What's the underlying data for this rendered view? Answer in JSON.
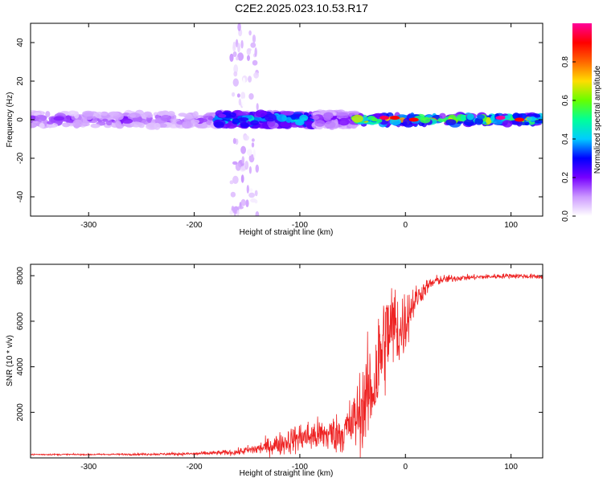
{
  "chart_data": [
    {
      "type": "heatmap",
      "title": "C2E2.2025.023.10.53.R17",
      "xlabel": "Height of straight line (km)",
      "ylabel": "Frequency (Hz)",
      "xlim": [
        -355,
        130
      ],
      "ylim": [
        -50,
        50
      ],
      "xticks": [
        -300,
        -200,
        -100,
        0,
        100
      ],
      "yticks": [
        -40,
        -20,
        0,
        20,
        40
      ],
      "colorbar": {
        "label": "Normalized spectral amplitude",
        "range": [
          0,
          1
        ],
        "ticks": [
          "0.0",
          "0.2",
          "0.4",
          "0.6",
          "0.8"
        ],
        "colors": [
          "#ffffff",
          "#cc99ff",
          "#7700ff",
          "#0000ff",
          "#00ccff",
          "#00ff99",
          "#66ff00",
          "#ffdd00",
          "#ff6600",
          "#ff0000",
          "#ff0099"
        ]
      },
      "regions": [
        {
          "x": [
            -355,
            -165
          ],
          "pattern": "broadband noise",
          "level": 0.15
        },
        {
          "x": [
            -165,
            -140
          ],
          "pattern": "sparse noise",
          "level": 0.05
        },
        {
          "x": [
            -178,
            -82
          ],
          "pattern": "band near 0 Hz",
          "level": 0.4
        },
        {
          "x": [
            -85,
            -47
          ],
          "pattern": "broadband noise",
          "level": 0.2
        },
        {
          "x": [
            -47,
            130
          ],
          "pattern": "narrow band near 0 Hz",
          "level": 0.6
        }
      ],
      "hotspots": [
        {
          "x": -20,
          "y": 1,
          "level": 0.95
        },
        {
          "x": -10,
          "y": 1,
          "level": 0.9
        },
        {
          "x": 8,
          "y": 0,
          "level": 0.9
        },
        {
          "x": 90,
          "y": 1,
          "level": 1.0
        },
        {
          "x": 108,
          "y": 0,
          "level": 0.9
        }
      ]
    },
    {
      "type": "line",
      "xlabel": "Height of straight line (km)",
      "ylabel": "SNR (10 * v/v)",
      "xlim": [
        -355,
        130
      ],
      "ylim": [
        0,
        8500
      ],
      "xticks": [
        -300,
        -200,
        -100,
        0,
        100
      ],
      "yticks": [
        2000,
        4000,
        6000,
        8000
      ],
      "color": "#ee2222",
      "series": [
        {
          "x": [
            -355,
            -300,
            -250,
            -200,
            -160,
            -140,
            -120,
            -100,
            -80,
            -60,
            -50,
            -40,
            -30,
            -25,
            -20,
            -15,
            -10,
            -5,
            0,
            5,
            10,
            20,
            30,
            50,
            75,
            100,
            130
          ],
          "y": [
            150,
            150,
            160,
            180,
            250,
            400,
            600,
            900,
            1000,
            1100,
            1500,
            2300,
            3200,
            4200,
            5200,
            5600,
            5800,
            5500,
            6000,
            6600,
            7000,
            7500,
            7800,
            7900,
            7950,
            8000,
            7950
          ],
          "noise": [
            30,
            30,
            40,
            60,
            120,
            250,
            450,
            600,
            700,
            800,
            1200,
            1700,
            2200,
            2400,
            2200,
            2000,
            1800,
            1500,
            1300,
            900,
            500,
            300,
            200,
            120,
            100,
            100,
            100
          ]
        }
      ]
    }
  ]
}
